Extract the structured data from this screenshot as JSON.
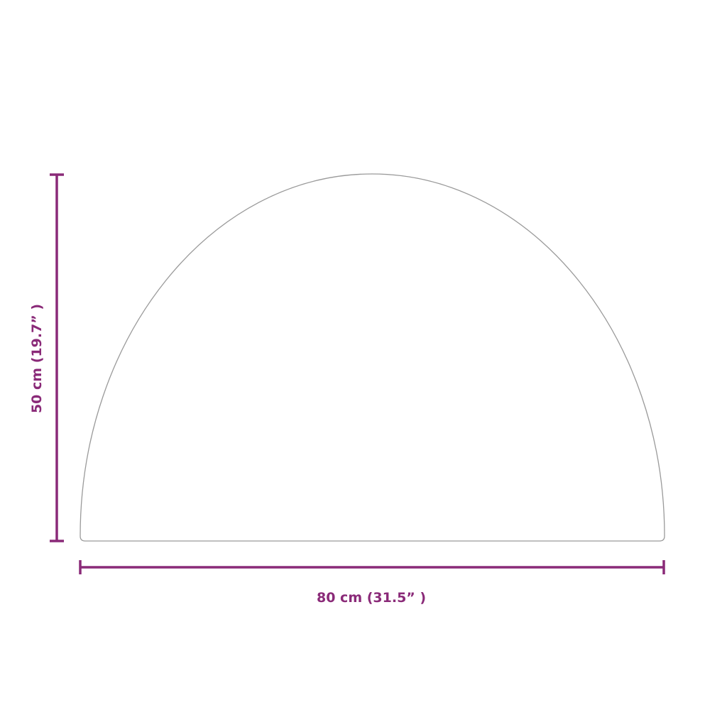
{
  "dimensions": {
    "width_label": "80 cm (31.5” )",
    "height_label": "50 cm (19.7” )"
  },
  "colors": {
    "dimension": "#8a2a78",
    "outline": "#9a9a9a"
  }
}
